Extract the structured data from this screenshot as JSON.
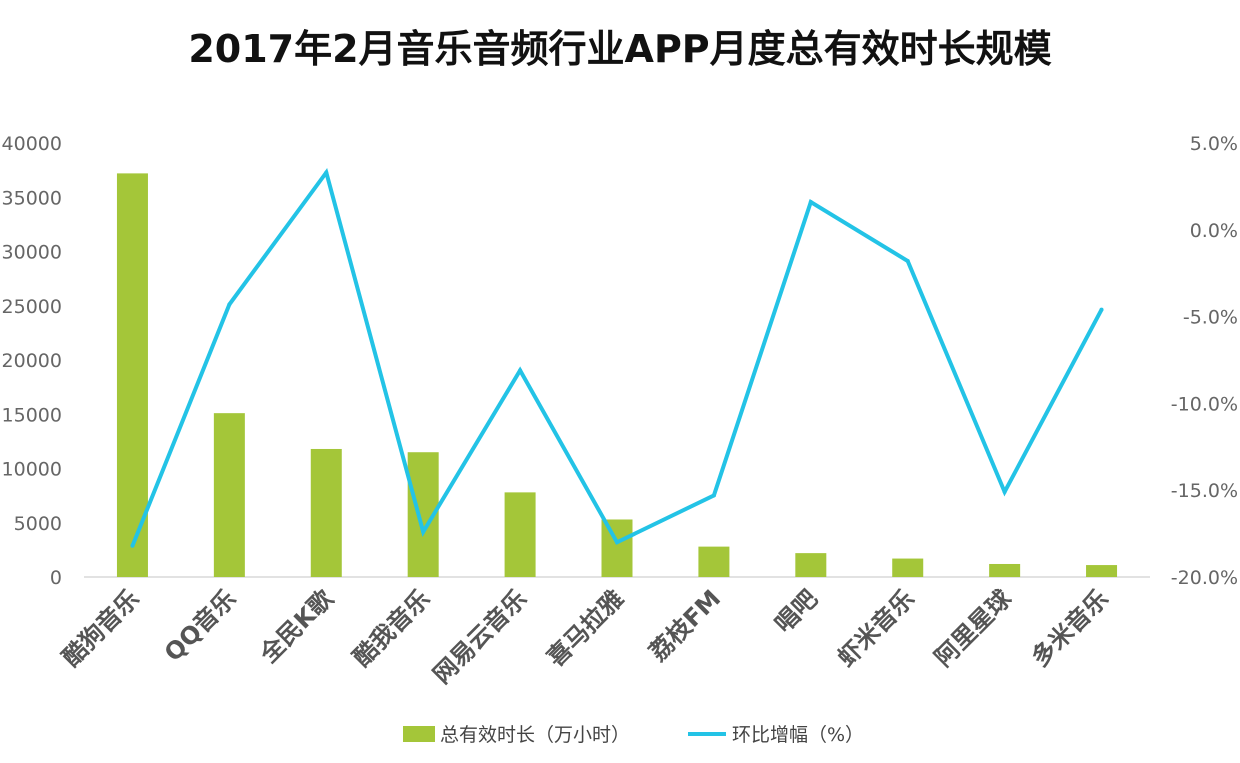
{
  "chart_data": {
    "type": "bar+line",
    "title": "2017年2月音乐音频行业APP月度总有效时长规模",
    "categories": [
      "酷狗音乐",
      "QQ音乐",
      "全民K歌",
      "酷我音乐",
      "网易云音乐",
      "喜马拉雅",
      "荔枝FM",
      "唱吧",
      "虾米音乐",
      "阿里星球",
      "多米音乐"
    ],
    "series": [
      {
        "name": "总有效时长（万小时）",
        "type": "bar",
        "axis": "left",
        "color": "#a4c639",
        "values": [
          37200,
          15100,
          11800,
          11500,
          7800,
          5300,
          2800,
          2200,
          1700,
          1200,
          1100
        ]
      },
      {
        "name": "环比增幅（%）",
        "type": "line",
        "axis": "right",
        "color": "#23c3e6",
        "values": [
          -18.2,
          -4.3,
          3.3,
          -17.4,
          -8.1,
          -18.0,
          -15.3,
          1.6,
          -1.8,
          -15.1,
          -4.6
        ]
      }
    ],
    "y_left": {
      "range": [
        0,
        40000
      ],
      "ticks": [
        "0",
        "5000",
        "10000",
        "15000",
        "20000",
        "25000",
        "30000",
        "35000",
        "40000"
      ]
    },
    "y_right": {
      "range": [
        -20,
        5
      ],
      "ticks": [
        "-20.0%",
        "-15.0%",
        "-10.0%",
        "-5.0%",
        "0.0%",
        "5.0%"
      ]
    },
    "legend": {
      "position": "bottom",
      "items": [
        "总有效时长（万小时）",
        "环比增幅（%）"
      ]
    }
  }
}
